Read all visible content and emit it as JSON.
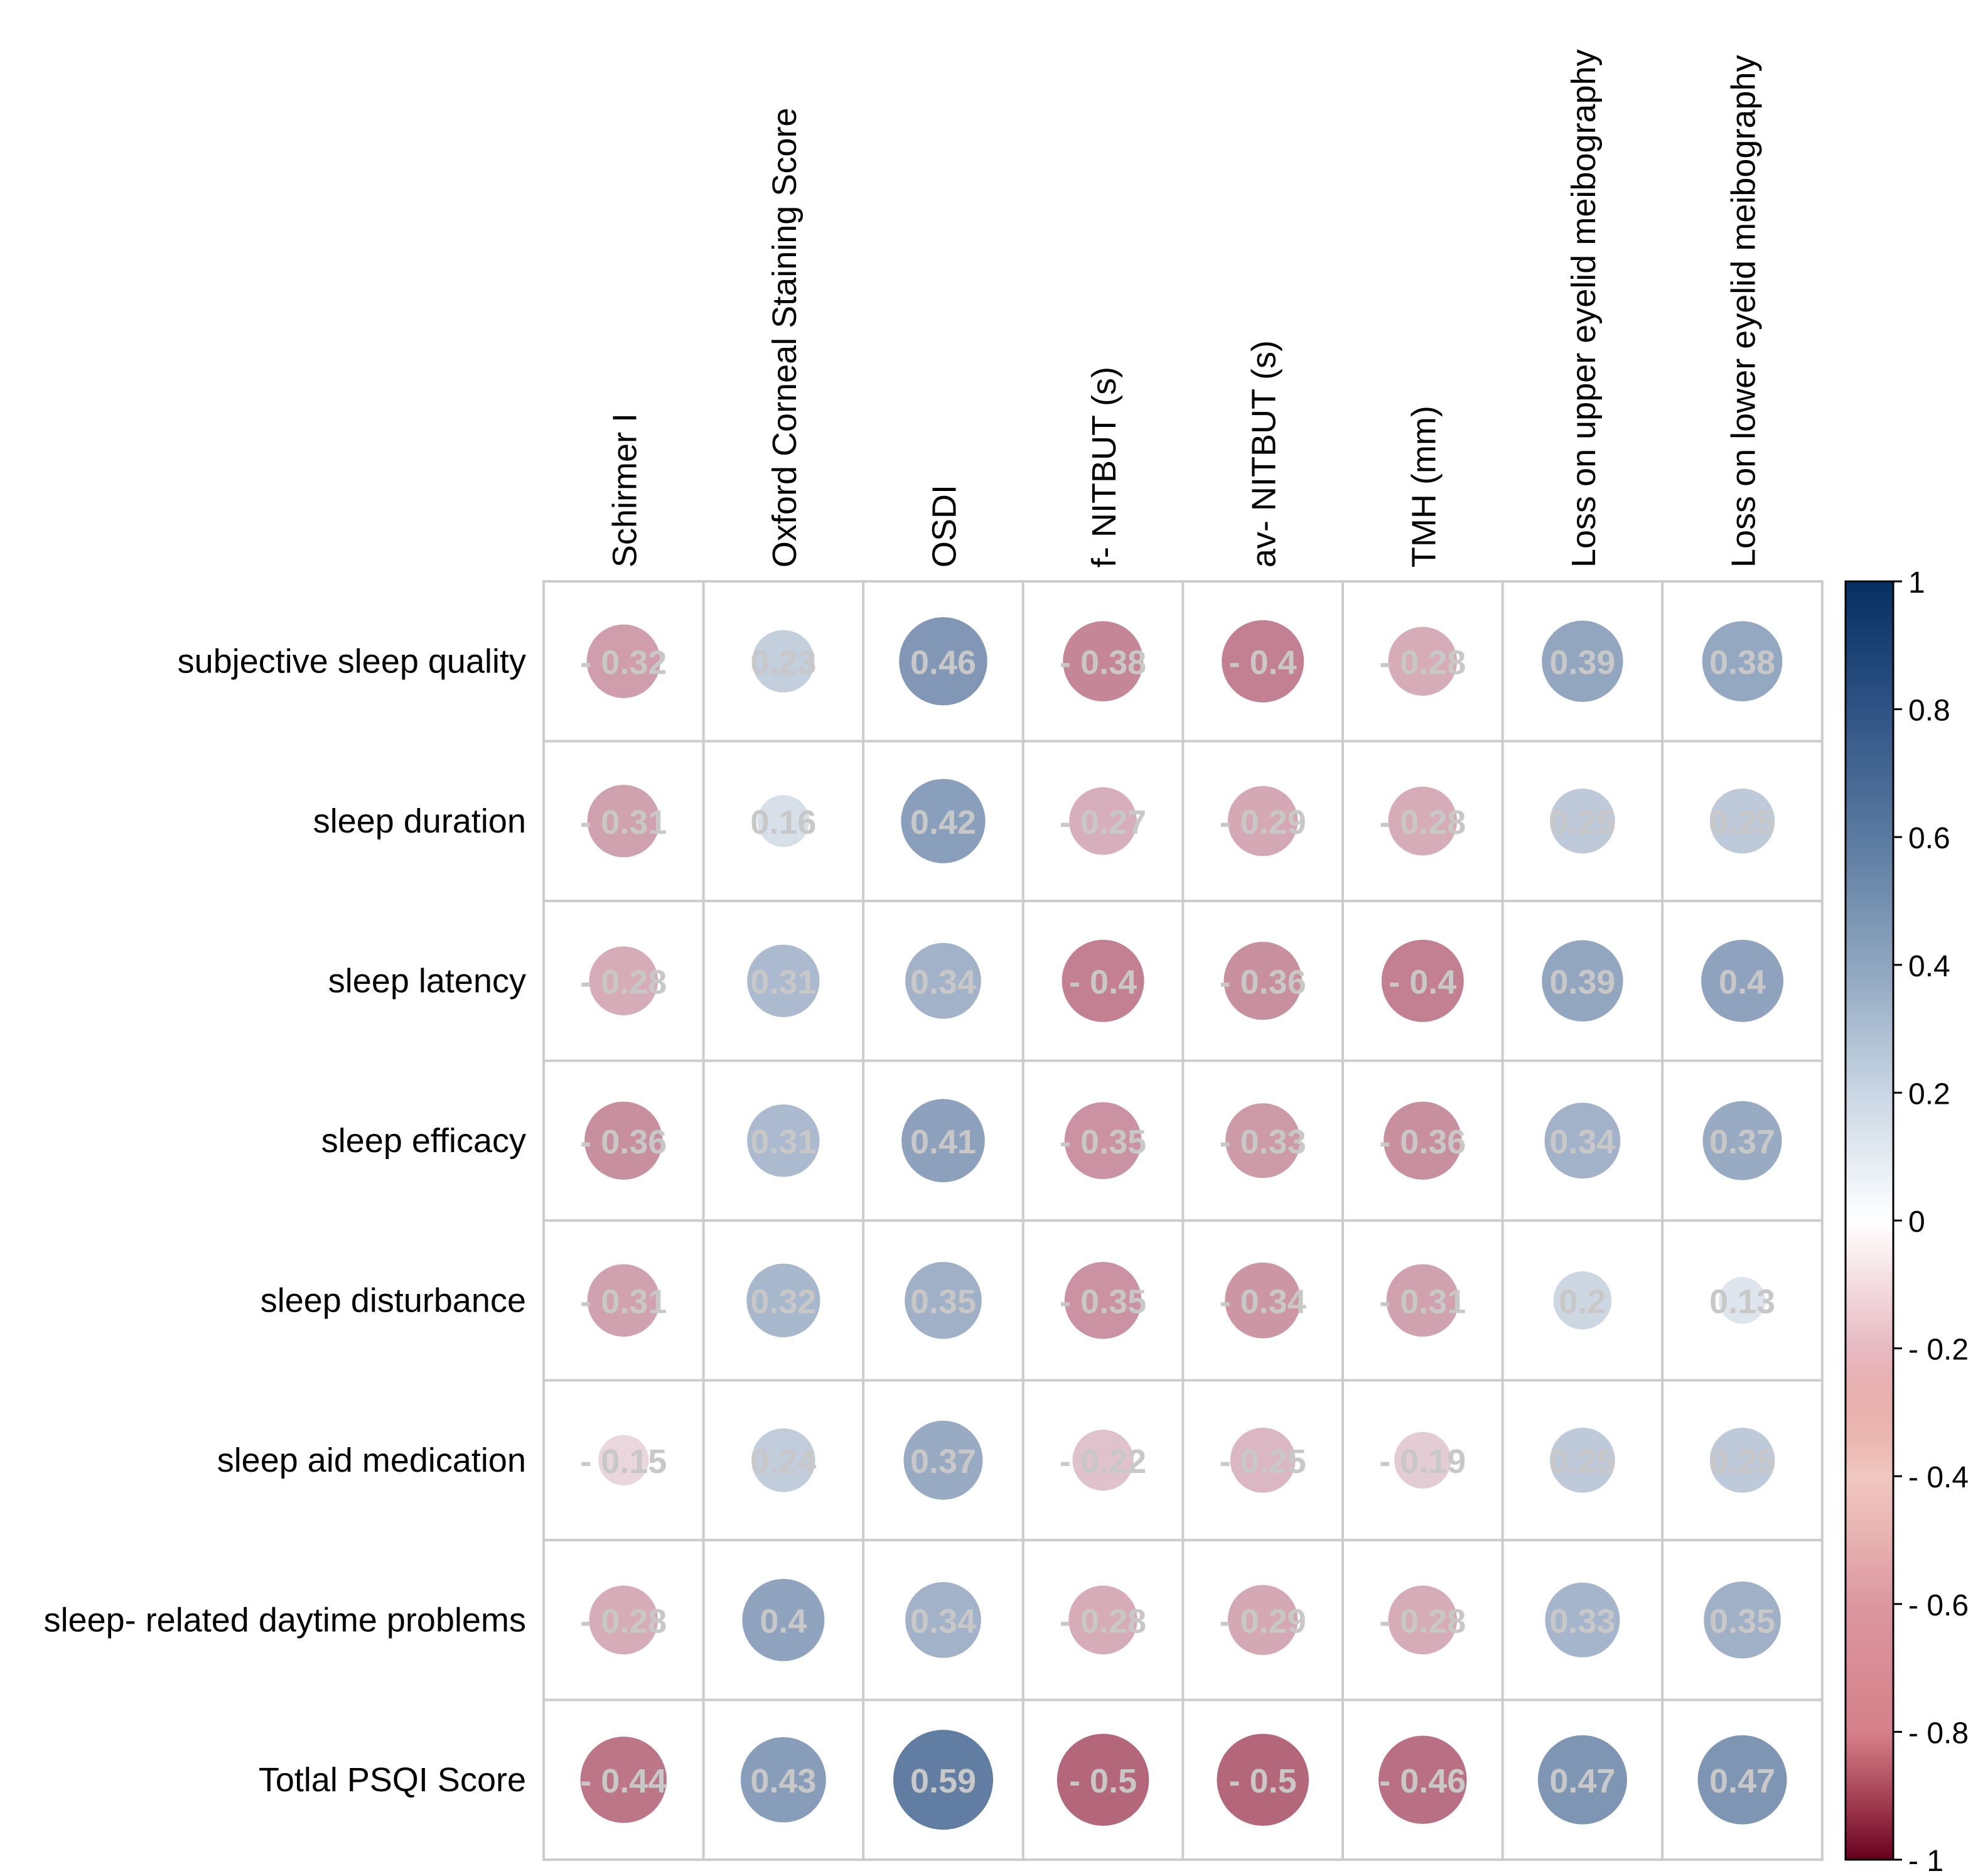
{
  "chart_data": {
    "type": "heatmap",
    "title": "",
    "columns": [
      "Schirmer I",
      "Oxford Corneal Staining Score",
      "OSDI",
      "f- NITBUT (s)",
      "av- NITBUT (s)",
      "TMH (mm)",
      "Loss on upper eyelid meibography",
      "Loss on lower eyelid meibography"
    ],
    "rows": [
      "subjective sleep quality",
      "sleep duration",
      "sleep latency",
      "sleep efficacy",
      "sleep disturbance",
      "sleep aid medication",
      "sleep- related daytime problems",
      "Totlal PSQI Score"
    ],
    "values": [
      [
        -0.32,
        0.23,
        0.46,
        -0.38,
        -0.4,
        -0.28,
        0.39,
        0.38
      ],
      [
        -0.31,
        0.16,
        0.42,
        -0.27,
        -0.29,
        -0.28,
        0.25,
        0.25
      ],
      [
        -0.28,
        0.31,
        0.34,
        -0.4,
        -0.36,
        -0.4,
        0.39,
        0.4
      ],
      [
        -0.36,
        0.31,
        0.41,
        -0.35,
        -0.33,
        -0.36,
        0.34,
        0.37
      ],
      [
        -0.31,
        0.32,
        0.35,
        -0.35,
        -0.34,
        -0.31,
        0.2,
        0.13
      ],
      [
        -0.15,
        0.24,
        0.37,
        -0.22,
        -0.25,
        -0.19,
        0.25,
        0.25
      ],
      [
        -0.28,
        0.4,
        0.34,
        -0.28,
        -0.29,
        -0.28,
        0.33,
        0.35
      ],
      [
        -0.44,
        0.43,
        0.59,
        -0.5,
        -0.5,
        -0.46,
        0.47,
        0.47
      ]
    ],
    "labels": [
      [
        "- 0.32",
        "0.23",
        "0.46",
        "- 0.38",
        "- 0.4",
        "- 0.28",
        "0.39",
        "0.38"
      ],
      [
        "- 0.31",
        "0.16",
        "0.42",
        "- 0.27",
        "- 0.29",
        "- 0.28",
        "0.25",
        "0.25"
      ],
      [
        "- 0.28",
        "0.31",
        "0.34",
        "- 0.4",
        "- 0.36",
        "- 0.4",
        "0.39",
        "0.4"
      ],
      [
        "- 0.36",
        "0.31",
        "0.41",
        "- 0.35",
        "- 0.33",
        "- 0.36",
        "0.34",
        "0.37"
      ],
      [
        "- 0.31",
        "0.32",
        "0.35",
        "- 0.35",
        "- 0.34",
        "- 0.31",
        "0.2",
        "0.13"
      ],
      [
        "- 0.15",
        "0.24",
        "0.37",
        "- 0.22",
        "- 0.25",
        "- 0.19",
        "0.25",
        "0.25"
      ],
      [
        "- 0.28",
        "0.4",
        "0.34",
        "- 0.28",
        "- 0.29",
        "- 0.28",
        "0.33",
        "0.35"
      ],
      [
        "- 0.44",
        "0.43",
        "0.59",
        "- 0.5",
        "- 0.5",
        "- 0.46",
        "0.47",
        "0.47"
      ]
    ],
    "colorbar": {
      "range": [
        -1,
        1
      ],
      "ticks": [
        1,
        0.8,
        0.6,
        0.4,
        0.2,
        0,
        -0.2,
        -0.4,
        -0.6,
        -0.8,
        -1
      ],
      "tick_labels": [
        "1",
        "0.8",
        "0.6",
        "0.4",
        "0.2",
        "0",
        "- 0.2",
        "- 0.4",
        "- 0.6",
        "- 0.8",
        "- 1"
      ],
      "colors": [
        "#67001f",
        "#b2182b",
        "#d6604d",
        "#f4a582",
        "#fddbc7",
        "#ffffff",
        "#d1e5f0",
        "#92c5de",
        "#4393c3",
        "#2166ac",
        "#053061"
      ]
    },
    "cell_label_color": "#c8c8c8",
    "grid_color": "#cccccc"
  }
}
